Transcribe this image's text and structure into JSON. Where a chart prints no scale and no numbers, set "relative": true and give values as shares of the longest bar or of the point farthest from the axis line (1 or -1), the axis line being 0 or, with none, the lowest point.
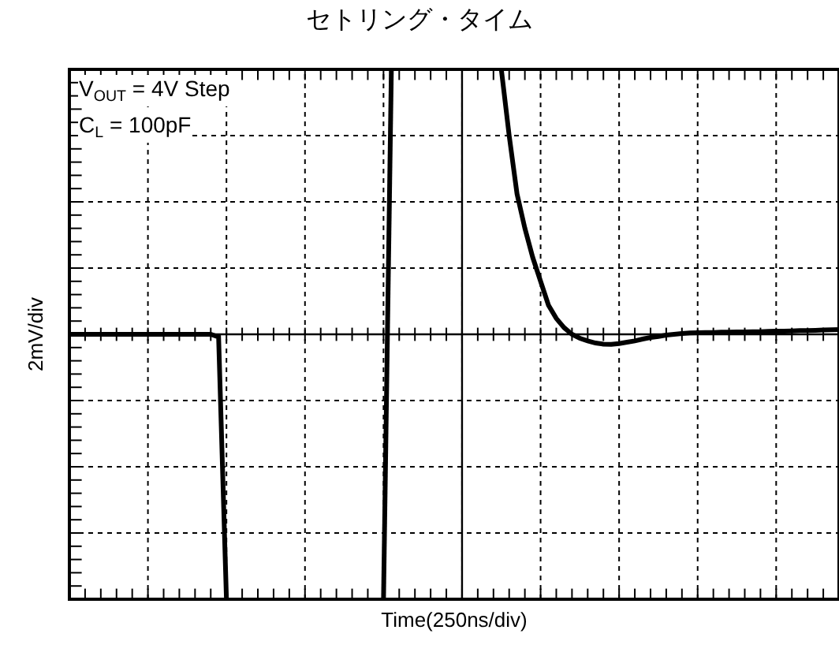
{
  "chart_data": {
    "type": "line",
    "title": "セトリング・タイム",
    "xlabel": "Time(250ns/div)",
    "ylabel": "2mV/div",
    "relative": true,
    "grid": true,
    "marker": "none",
    "line_style": "solid",
    "annotations": [
      "V$_{OUT}$ = 4V Step",
      "C$_{L}$ = 100pF"
    ],
    "categories": [
      null,
      null,
      null,
      null,
      null,
      null,
      null,
      null,
      null,
      null,
      null,
      null,
      null,
      null,
      null,
      null,
      null,
      null,
      null,
      null,
      null,
      null,
      null,
      null,
      null,
      null,
      null,
      null,
      null,
      null,
      null,
      null,
      null,
      null,
      null,
      null,
      null,
      null,
      null,
      null,
      null,
      null,
      null,
      null,
      null,
      null,
      null,
      null,
      null,
      null,
      null,
      null,
      null,
      null,
      null,
      null,
      null,
      null,
      null,
      null,
      null,
      null,
      null,
      null,
      null,
      null,
      null,
      null,
      null,
      null,
      null,
      null,
      null,
      null,
      null,
      null,
      null,
      null,
      null,
      null,
      null,
      null,
      null,
      null,
      null,
      null,
      null,
      null,
      null,
      null,
      null,
      null,
      null,
      null,
      null,
      null,
      null,
      null,
      null
    ],
    "series": [
      {
        "color": "#000000",
        "values": [
          0,
          0,
          0,
          0,
          0,
          0,
          0,
          0,
          0,
          0,
          0,
          0,
          0,
          0,
          0,
          0,
          0,
          0,
          0,
          -0.01,
          -1,
          null,
          null,
          null,
          null,
          null,
          null,
          null,
          null,
          null,
          null,
          null,
          null,
          null,
          null,
          null,
          null,
          null,
          null,
          null,
          -1,
          1,
          null,
          null,
          null,
          null,
          null,
          null,
          null,
          null,
          null,
          null,
          null,
          null,
          null,
          1,
          0.75,
          0.53,
          0.4,
          0.29,
          0.2,
          0.11,
          0.06,
          0.025,
          0,
          -0.015,
          -0.025,
          -0.033,
          -0.037,
          -0.038,
          -0.035,
          -0.03,
          -0.025,
          -0.018,
          -0.012,
          -0.008,
          -0.003,
          0,
          0.003,
          0.005,
          0.006,
          0.007,
          0.007,
          0.008,
          0.008,
          0.009,
          0.009,
          0.01,
          0.01,
          0.011,
          0.012,
          0.012,
          0.013,
          0.014,
          0.014,
          0.015,
          0.016,
          0.017,
          0.018
        ]
      }
    ]
  }
}
